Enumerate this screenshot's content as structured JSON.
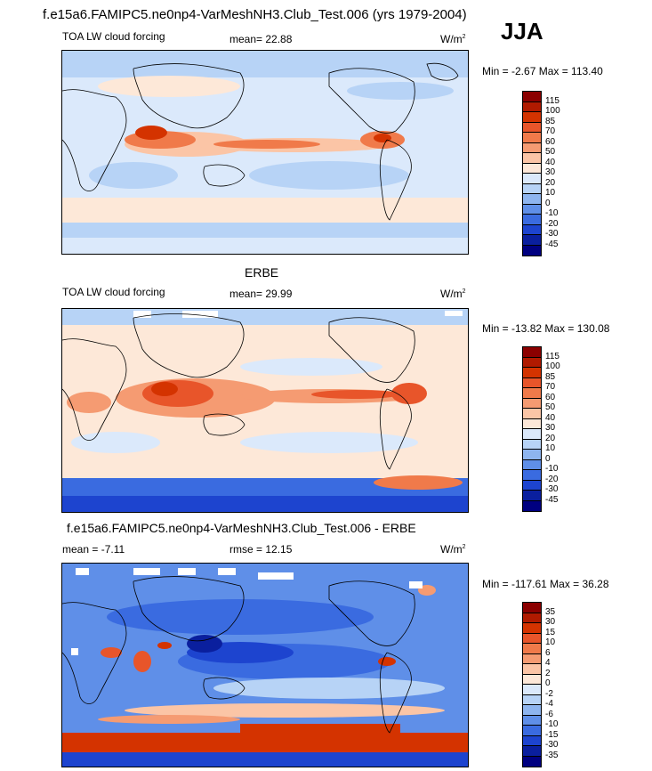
{
  "header": {
    "title": "f.e15a6.FAMIPC5.ne0np4-VarMeshNH3.Club_Test.006 (yrs 1979-2004)",
    "season": "JJA"
  },
  "panels": [
    {
      "title": "",
      "variable": "TOA LW cloud forcing",
      "stat_left": "",
      "stat_mid": "mean=  22.88",
      "units": "W/m",
      "units_sup": "2",
      "minmax": "Min =  -2.67 Max = 113.40",
      "levels": [
        "115",
        "100",
        "85",
        "70",
        "60",
        "50",
        "40",
        "30",
        "20",
        "10",
        "0",
        "-10",
        "-20",
        "-30",
        "-45"
      ],
      "colors": [
        "#8b0000",
        "#b01a00",
        "#d43300",
        "#e8552a",
        "#f07a4a",
        "#f59b72",
        "#fbc5a6",
        "#fde8d8",
        "#dbe9fb",
        "#b7d3f6",
        "#8eb5ef",
        "#5f8fe8",
        "#3a6be0",
        "#1d44cf",
        "#0a1f9e",
        "#000080"
      ]
    },
    {
      "title": "ERBE",
      "variable": "TOA LW cloud forcing",
      "stat_left": "",
      "stat_mid": "mean=  29.99",
      "units": "W/m",
      "units_sup": "2",
      "minmax": "Min = -13.82 Max = 130.08",
      "levels": [
        "115",
        "100",
        "85",
        "70",
        "60",
        "50",
        "40",
        "30",
        "20",
        "10",
        "0",
        "-10",
        "-20",
        "-30",
        "-45"
      ],
      "colors": [
        "#8b0000",
        "#b01a00",
        "#d43300",
        "#e8552a",
        "#f07a4a",
        "#f59b72",
        "#fbc5a6",
        "#fde8d8",
        "#dbe9fb",
        "#b7d3f6",
        "#8eb5ef",
        "#5f8fe8",
        "#3a6be0",
        "#1d44cf",
        "#0a1f9e",
        "#000080"
      ]
    },
    {
      "title": "f.e15a6.FAMIPC5.ne0np4-VarMeshNH3.Club_Test.006 - ERBE",
      "variable": "",
      "stat_left": "mean =  -7.11",
      "stat_mid": "rmse =  12.15",
      "units": "W/m",
      "units_sup": "2",
      "minmax": "Min = -117.61 Max =  36.28",
      "levels": [
        "35",
        "30",
        "15",
        "10",
        "6",
        "4",
        "2",
        "0",
        "-2",
        "-4",
        "-6",
        "-10",
        "-15",
        "-30",
        "-35"
      ],
      "colors": [
        "#8b0000",
        "#b01a00",
        "#d43300",
        "#e8552a",
        "#f07a4a",
        "#f59b72",
        "#fbc5a6",
        "#fde8d8",
        "#dbe9fb",
        "#b7d3f6",
        "#8eb5ef",
        "#5f8fe8",
        "#3a6be0",
        "#1d44cf",
        "#0a1f9e",
        "#000080"
      ]
    }
  ]
}
